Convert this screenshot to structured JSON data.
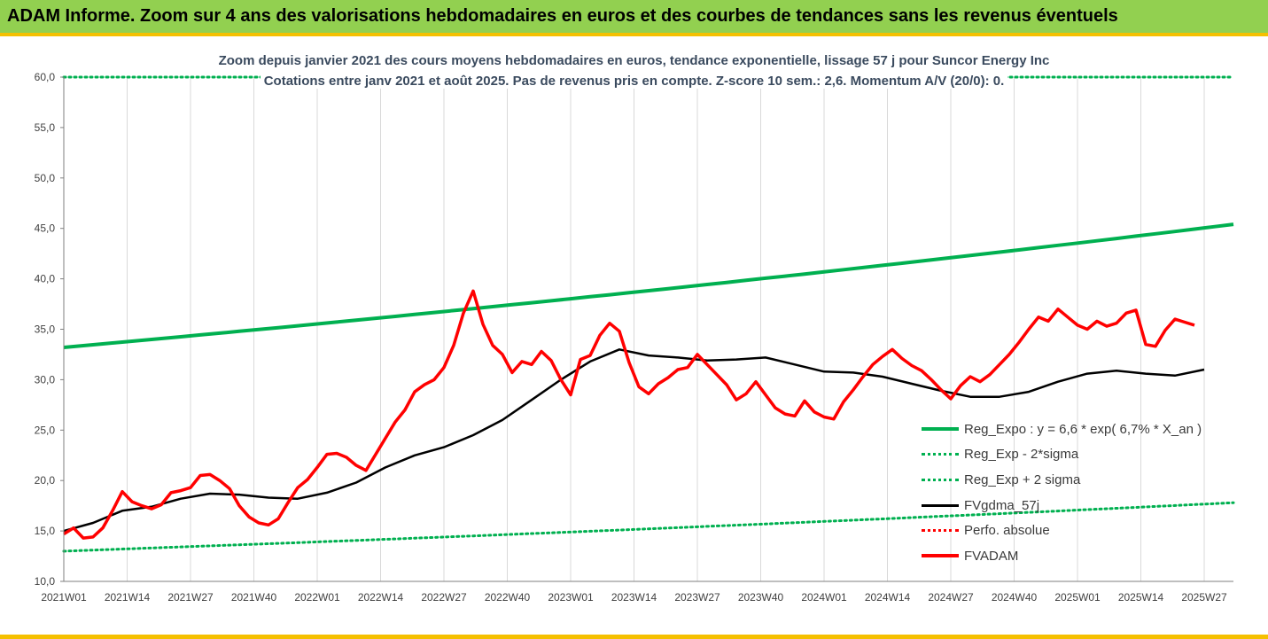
{
  "header": {
    "banner": "ADAM Informe. Zoom sur 4 ans des valorisations hebdomadaires en euros et des courbes de tendances sans les revenus éventuels"
  },
  "chart_data": {
    "type": "line",
    "title": "Zoom depuis janvier 2021 des cours moyens hebdomadaires en euros, tendance exponentielle, lissage 57 j pour Suncor Energy Inc",
    "subtitle": "Cotations entre janv 2021 et août 2025.  Pas de revenus pris en compte. Z-score 10 sem.: 2,6. Momentum A/V (20/0): 0.",
    "xlabel": "",
    "ylabel": "",
    "ylim": [
      10,
      60
    ],
    "yticks": [
      "10,0",
      "15,0",
      "20,0",
      "25,0",
      "30,0",
      "35,0",
      "40,0",
      "45,0",
      "50,0",
      "55,0",
      "60,0"
    ],
    "x_tick_labels": [
      "2021W01",
      "2021W14",
      "2021W27",
      "2021W40",
      "2022W01",
      "2022W14",
      "2022W27",
      "2022W40",
      "2023W01",
      "2023W14",
      "2023W27",
      "2023W40",
      "2024W01",
      "2024W14",
      "2024W27",
      "2024W40",
      "2025W01",
      "2025W14",
      "2025W27"
    ],
    "n_weeks": 241,
    "grid": "vertical",
    "legend_position": "bottom-right",
    "series": [
      {
        "name": "Reg_Expo : y = 6,6 * exp( 6,7% *  X_an )",
        "color": "#00b050",
        "style": "solid",
        "start": 33.2,
        "end": 45.4
      },
      {
        "name": "Reg_Exp - 2*sigma",
        "color": "#00b050",
        "style": "dotted",
        "start": 13.0,
        "end": 17.8
      },
      {
        "name": "Reg_Exp + 2 sigma",
        "color": "#00b050",
        "style": "dotted",
        "start": 60.0,
        "end": 60.0
      },
      {
        "name": "FVgdma_57j",
        "color": "#000000",
        "style": "solid",
        "points": [
          [
            0,
            15.0
          ],
          [
            6,
            15.8
          ],
          [
            12,
            17.0
          ],
          [
            18,
            17.4
          ],
          [
            24,
            18.2
          ],
          [
            30,
            18.7
          ],
          [
            36,
            18.6
          ],
          [
            42,
            18.3
          ],
          [
            48,
            18.2
          ],
          [
            54,
            18.8
          ],
          [
            60,
            19.8
          ],
          [
            66,
            21.3
          ],
          [
            72,
            22.5
          ],
          [
            78,
            23.3
          ],
          [
            84,
            24.5
          ],
          [
            90,
            26.0
          ],
          [
            96,
            28.0
          ],
          [
            102,
            30.0
          ],
          [
            108,
            31.8
          ],
          [
            114,
            33.0
          ],
          [
            120,
            32.4
          ],
          [
            126,
            32.2
          ],
          [
            132,
            31.9
          ],
          [
            138,
            32.0
          ],
          [
            144,
            32.2
          ],
          [
            150,
            31.5
          ],
          [
            156,
            30.8
          ],
          [
            162,
            30.7
          ],
          [
            168,
            30.3
          ],
          [
            174,
            29.6
          ],
          [
            180,
            28.9
          ],
          [
            186,
            28.3
          ],
          [
            192,
            28.3
          ],
          [
            198,
            28.8
          ],
          [
            204,
            29.8
          ],
          [
            210,
            30.6
          ],
          [
            216,
            30.9
          ],
          [
            222,
            30.6
          ],
          [
            228,
            30.4
          ],
          [
            234,
            31.0
          ]
        ]
      },
      {
        "name": "Perfo. absolue",
        "color": "#ff0000",
        "style": "dotted"
      },
      {
        "name": "FVADAM",
        "color": "#ff0000",
        "style": "solid",
        "points": [
          [
            0,
            14.7
          ],
          [
            2,
            15.3
          ],
          [
            4,
            14.3
          ],
          [
            6,
            14.4
          ],
          [
            8,
            15.3
          ],
          [
            10,
            17.0
          ],
          [
            12,
            18.9
          ],
          [
            14,
            17.9
          ],
          [
            16,
            17.5
          ],
          [
            18,
            17.2
          ],
          [
            20,
            17.6
          ],
          [
            22,
            18.8
          ],
          [
            24,
            19.0
          ],
          [
            26,
            19.3
          ],
          [
            28,
            20.5
          ],
          [
            30,
            20.6
          ],
          [
            32,
            20.0
          ],
          [
            34,
            19.2
          ],
          [
            36,
            17.5
          ],
          [
            38,
            16.4
          ],
          [
            40,
            15.8
          ],
          [
            42,
            15.6
          ],
          [
            44,
            16.2
          ],
          [
            46,
            17.8
          ],
          [
            48,
            19.3
          ],
          [
            50,
            20.1
          ],
          [
            52,
            21.3
          ],
          [
            54,
            22.6
          ],
          [
            56,
            22.7
          ],
          [
            58,
            22.3
          ],
          [
            60,
            21.5
          ],
          [
            62,
            21.0
          ],
          [
            64,
            22.6
          ],
          [
            66,
            24.2
          ],
          [
            68,
            25.8
          ],
          [
            70,
            27.0
          ],
          [
            72,
            28.8
          ],
          [
            74,
            29.5
          ],
          [
            76,
            30.0
          ],
          [
            78,
            31.2
          ],
          [
            80,
            33.4
          ],
          [
            82,
            36.6
          ],
          [
            84,
            38.8
          ],
          [
            86,
            35.5
          ],
          [
            88,
            33.4
          ],
          [
            90,
            32.5
          ],
          [
            92,
            30.7
          ],
          [
            94,
            31.8
          ],
          [
            96,
            31.5
          ],
          [
            98,
            32.8
          ],
          [
            100,
            31.9
          ],
          [
            102,
            30.0
          ],
          [
            104,
            28.5
          ],
          [
            106,
            32.0
          ],
          [
            108,
            32.4
          ],
          [
            110,
            34.4
          ],
          [
            112,
            35.6
          ],
          [
            114,
            34.8
          ],
          [
            116,
            31.7
          ],
          [
            118,
            29.3
          ],
          [
            120,
            28.6
          ],
          [
            122,
            29.6
          ],
          [
            124,
            30.2
          ],
          [
            126,
            31.0
          ],
          [
            128,
            31.2
          ],
          [
            130,
            32.5
          ],
          [
            132,
            31.5
          ],
          [
            134,
            30.5
          ],
          [
            136,
            29.5
          ],
          [
            138,
            28.0
          ],
          [
            140,
            28.6
          ],
          [
            142,
            29.8
          ],
          [
            144,
            28.5
          ],
          [
            146,
            27.2
          ],
          [
            148,
            26.6
          ],
          [
            150,
            26.4
          ],
          [
            152,
            27.9
          ],
          [
            154,
            26.8
          ],
          [
            156,
            26.3
          ],
          [
            158,
            26.1
          ],
          [
            160,
            27.8
          ],
          [
            162,
            29.0
          ],
          [
            164,
            30.3
          ],
          [
            166,
            31.5
          ],
          [
            168,
            32.3
          ],
          [
            170,
            33.0
          ],
          [
            172,
            32.1
          ],
          [
            174,
            31.4
          ],
          [
            176,
            30.9
          ],
          [
            178,
            30.0
          ],
          [
            180,
            29.0
          ],
          [
            182,
            28.1
          ],
          [
            184,
            29.4
          ],
          [
            186,
            30.3
          ],
          [
            188,
            29.8
          ],
          [
            190,
            30.5
          ],
          [
            192,
            31.5
          ],
          [
            194,
            32.5
          ],
          [
            196,
            33.7
          ],
          [
            198,
            35.0
          ],
          [
            200,
            36.2
          ],
          [
            202,
            35.8
          ],
          [
            204,
            37.0
          ],
          [
            206,
            36.2
          ],
          [
            208,
            35.4
          ],
          [
            210,
            35.0
          ],
          [
            212,
            35.8
          ],
          [
            214,
            35.3
          ],
          [
            216,
            35.6
          ],
          [
            218,
            36.6
          ],
          [
            220,
            36.9
          ],
          [
            222,
            33.5
          ],
          [
            224,
            33.3
          ],
          [
            226,
            34.9
          ],
          [
            228,
            36.0
          ],
          [
            230,
            35.7
          ],
          [
            232,
            35.4
          ]
        ]
      }
    ]
  }
}
